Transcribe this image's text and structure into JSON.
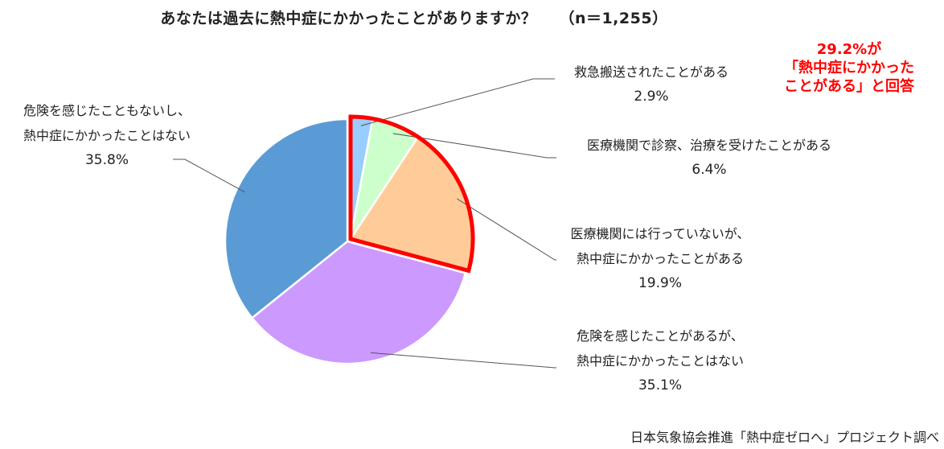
{
  "chart_data": {
    "type": "pie",
    "title": "あなたは過去に熱中症にかかったことがありますか？",
    "sample_size": "（n＝1,255）",
    "slices": [
      {
        "label_lines": [
          "救急搬送されたことがある"
        ],
        "pct_text": "2.9%",
        "value": 2.9,
        "color": "#99ccff"
      },
      {
        "label_lines": [
          "医療機関で診察、治療を受けたことがある"
        ],
        "pct_text": "6.4%",
        "value": 6.4,
        "color": "#ccffcc"
      },
      {
        "label_lines": [
          "医療機関には行っていないが、",
          "熱中症にかかったことがある"
        ],
        "pct_text": "19.9%",
        "value": 19.9,
        "color": "#ffcc99"
      },
      {
        "label_lines": [
          "危険を感じたことがあるが、",
          "熱中症にかかったことはない"
        ],
        "pct_text": "35.1%",
        "value": 35.1,
        "color": "#cc99ff"
      },
      {
        "label_lines": [
          "危険を感じたこともないし、",
          "熱中症にかかったことはない"
        ],
        "pct_text": "35.8%",
        "value": 35.8,
        "color": "#5b9bd5"
      }
    ],
    "highlight": {
      "slices": [
        0,
        1,
        2
      ],
      "color": "#ff0000",
      "callout_lines": [
        "29.2%が",
        "「熱中症にかかった",
        "ことがある」と回答"
      ]
    },
    "source": "日本気象協会推進「熱中症ゼロへ」プロジェクト調べ"
  }
}
